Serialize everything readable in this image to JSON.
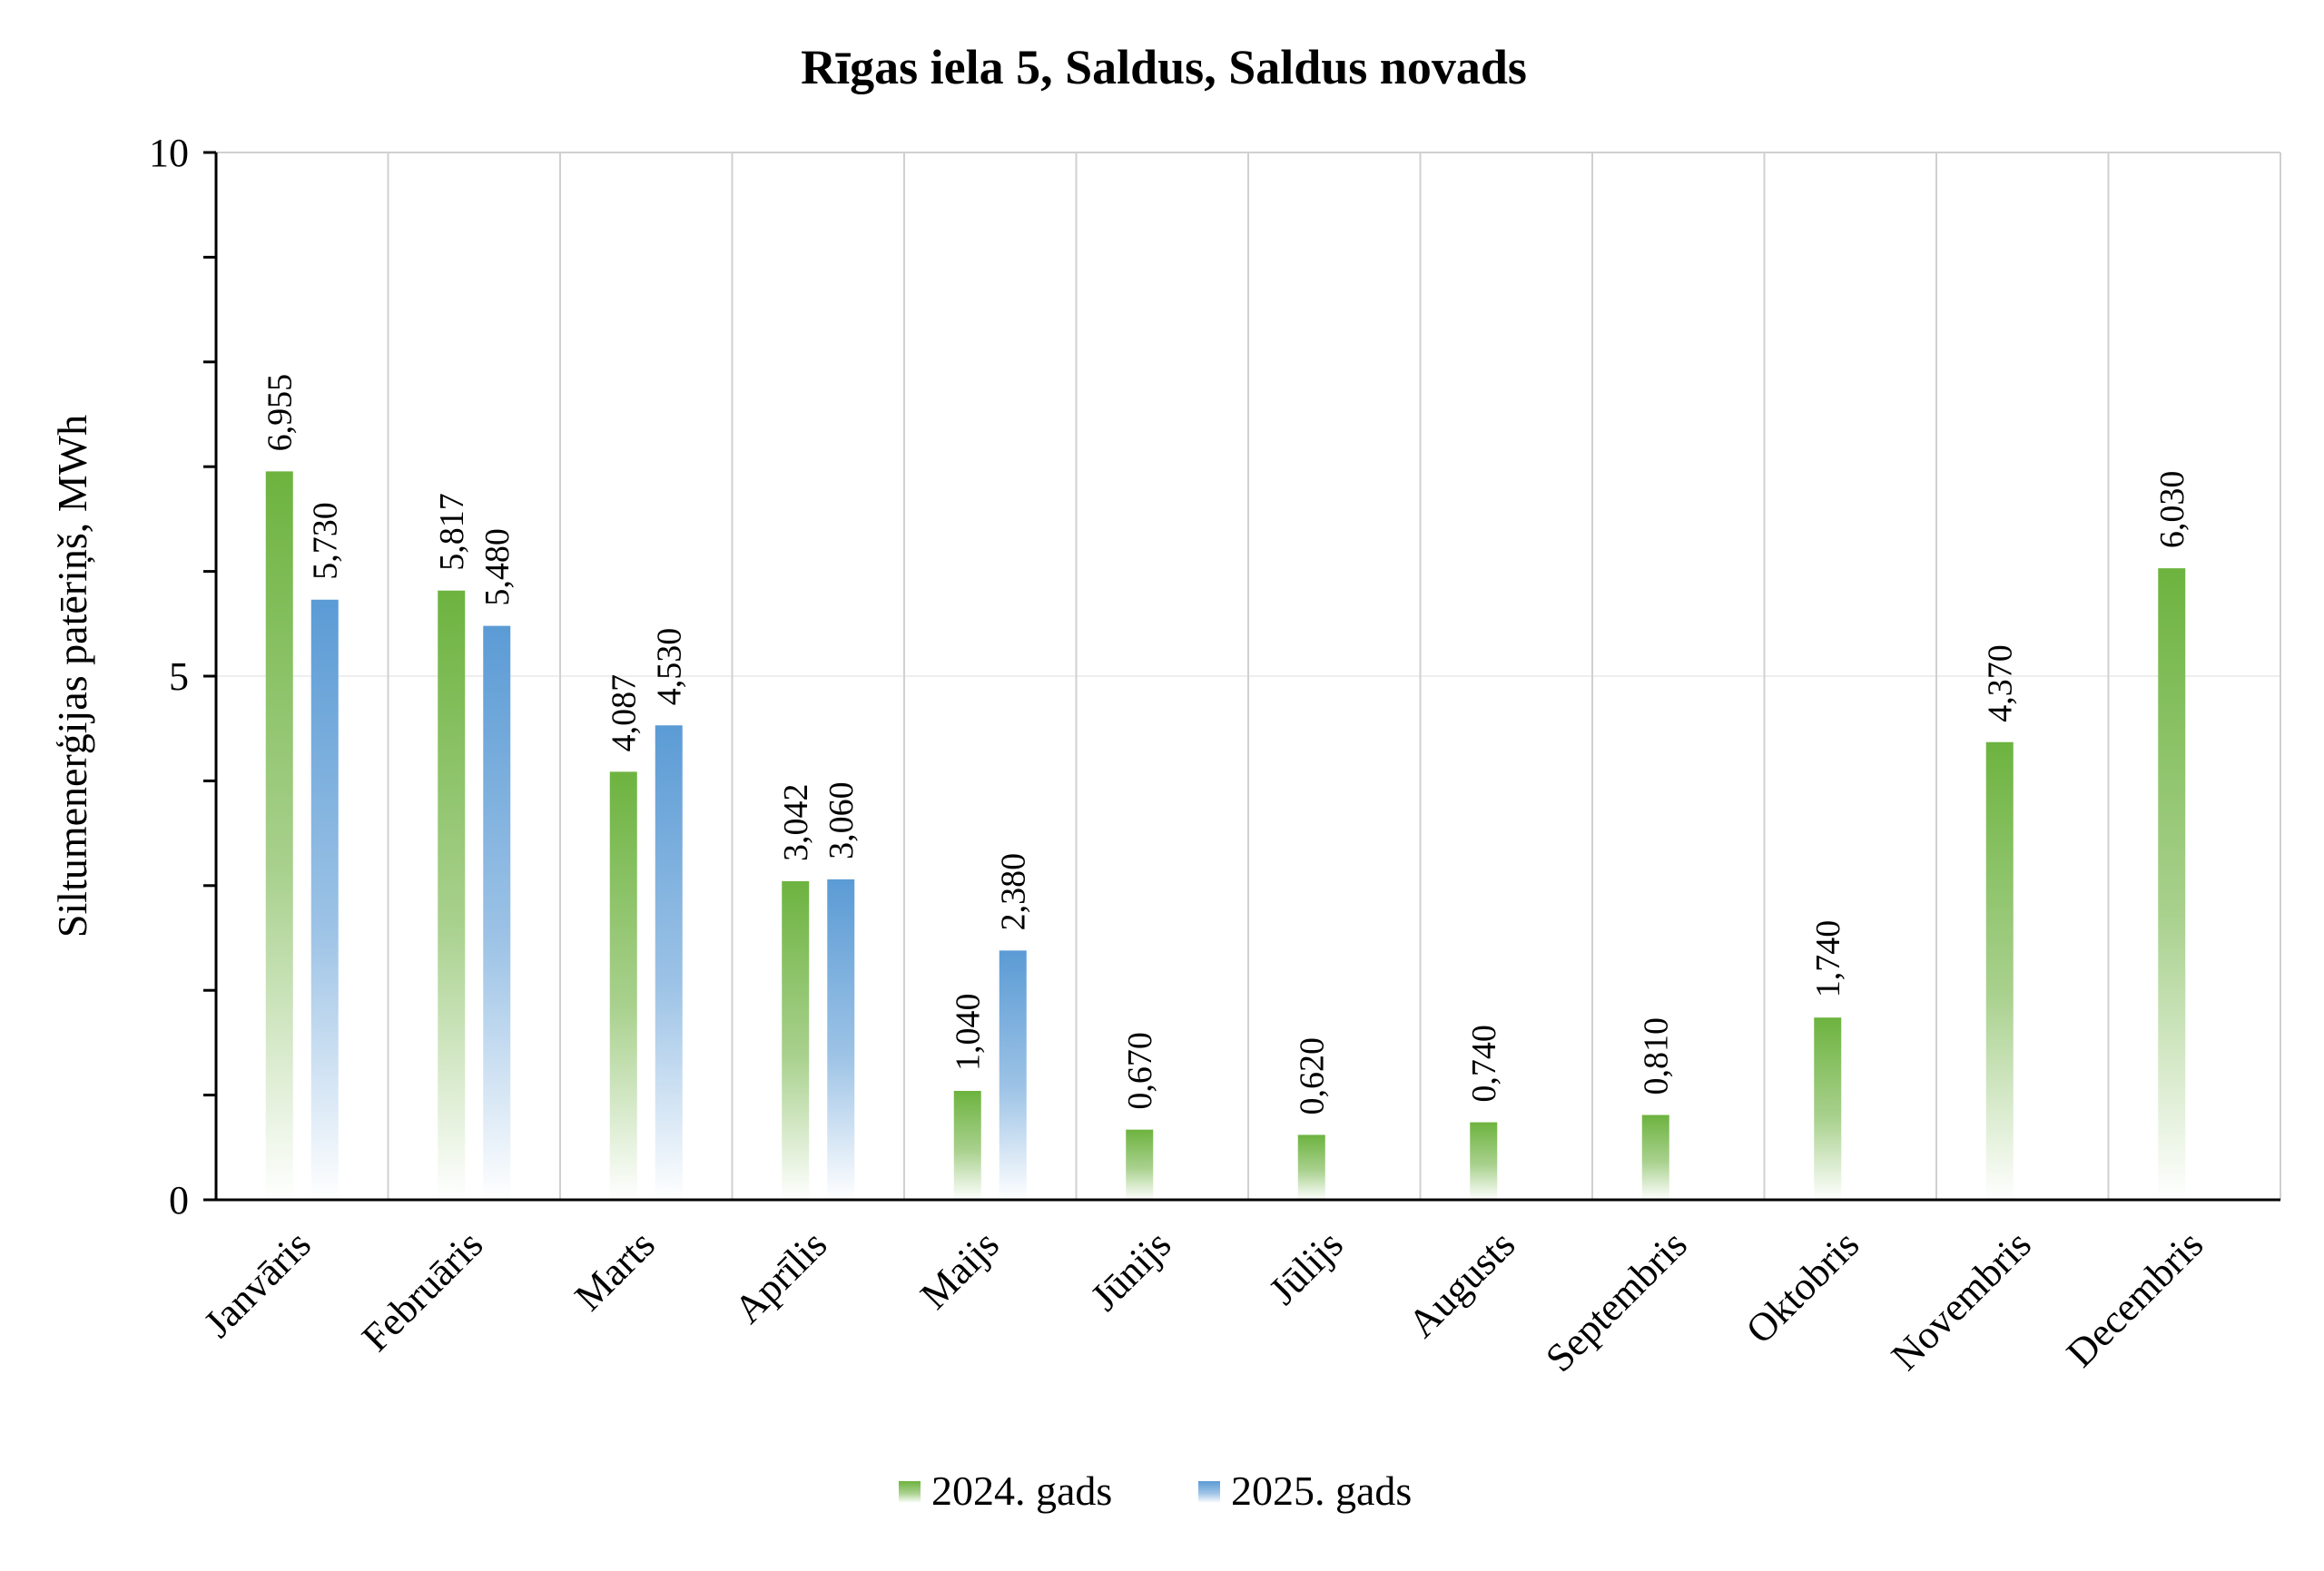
{
  "chart_data": {
    "type": "bar",
    "title": "Rīgas iela 5, Saldus, Saldus novads",
    "xlabel": "",
    "ylabel": "Siltumenerģijas patēriņš, MWh",
    "ylim": [
      0,
      10
    ],
    "yticks": [
      "0",
      "5",
      "10"
    ],
    "grid": true,
    "legend_position": "bottom",
    "categories": [
      "Janvāris",
      "Februāris",
      "Marts",
      "Aprīlis",
      "Maijs",
      "Jūnijs",
      "Jūlijs",
      "Augusts",
      "Septembris",
      "Oktobris",
      "Novembris",
      "Decembris"
    ],
    "series": [
      {
        "name": "2024. gads",
        "color": "#6db33f",
        "values": [
          6.955,
          5.817,
          4.087,
          3.042,
          1.04,
          0.67,
          0.62,
          0.74,
          0.81,
          1.74,
          4.37,
          6.03
        ],
        "labels": [
          "6,955",
          "5,817",
          "4,087",
          "3,042",
          "1,040",
          "0,670",
          "0,620",
          "0,740",
          "0,810",
          "1,740",
          "4,370",
          "6,030"
        ]
      },
      {
        "name": "2025. gads",
        "color": "#5b9bd5",
        "values": [
          5.73,
          5.48,
          4.53,
          3.06,
          2.38,
          null,
          null,
          null,
          null,
          null,
          null,
          null
        ],
        "labels": [
          "5,730",
          "5,480",
          "4,530",
          "3,060",
          "2,380",
          "",
          "",
          "",
          "",
          "",
          "",
          ""
        ]
      }
    ]
  }
}
